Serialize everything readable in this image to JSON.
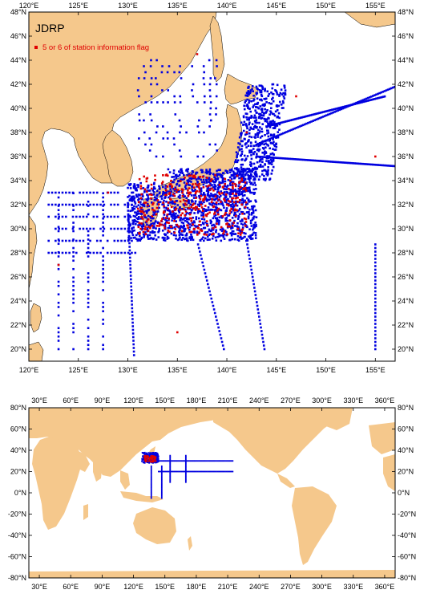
{
  "map_title": "JDRP",
  "legend": {
    "label": "5 or 6 of station information flag",
    "marker_color": "#e00000"
  },
  "colors": {
    "land": "#f5c88c",
    "ocean": "#ffffff",
    "station": "#0000e0",
    "flagged": "#e00000",
    "frame": "#000000"
  },
  "regional_map": {
    "lon_range": [
      120,
      157
    ],
    "lat_range": [
      19,
      48
    ],
    "x_ticks": [
      "120°E",
      "125°E",
      "130°E",
      "135°E",
      "140°E",
      "145°E",
      "150°E",
      "155°E"
    ],
    "y_ticks": [
      "20°N",
      "22°N",
      "24°N",
      "26°N",
      "28°N",
      "30°N",
      "32°N",
      "34°N",
      "36°N",
      "38°N",
      "40°N",
      "42°N",
      "44°N",
      "46°N",
      "48°N"
    ]
  },
  "global_map": {
    "lon_range": [
      20,
      370
    ],
    "lat_range": [
      -80,
      80
    ],
    "x_ticks": [
      "30°E",
      "60°E",
      "90°E",
      "120°E",
      "150°E",
      "180°E",
      "210°E",
      "240°E",
      "270°E",
      "300°E",
      "330°E",
      "360°E"
    ],
    "y_ticks": [
      "80°S",
      "60°S",
      "40°S",
      "20°S",
      "0°N",
      "20°N",
      "40°N",
      "60°N",
      "80°N"
    ],
    "y_tick_labels": [
      "-80°N",
      "-60°N",
      "-40°N",
      "-20°N",
      "0°N",
      "20°N",
      "40°N",
      "60°N",
      "80°N"
    ]
  }
}
